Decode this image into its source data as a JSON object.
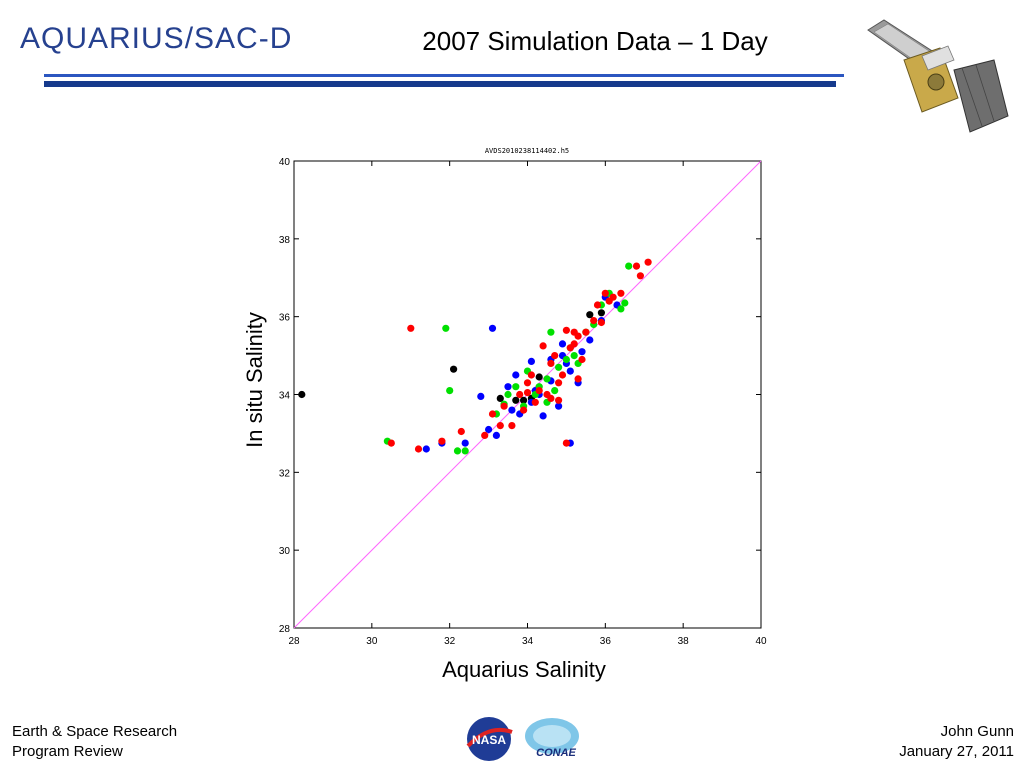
{
  "header": {
    "logo_text": "AQUARIUS/SAC-D",
    "title": "2007 Simulation Data – 1 Day"
  },
  "footer": {
    "left_line1": "Earth & Space Research",
    "left_line2": "Program Review",
    "right_line1": "John Gunn",
    "right_line2": "January 27, 2011"
  },
  "logos": {
    "nasa": "NASA",
    "conae": "CONAE"
  },
  "colors": {
    "rule_thin": "#2b56c0",
    "rule_thick": "#163a8c",
    "diagonal": "#ff66ff",
    "blue": "#0000ff",
    "green": "#00e000",
    "red": "#ff0000",
    "black": "#000000"
  },
  "chart_data": {
    "type": "scatter",
    "title": "AVDS2010238114402.h5",
    "xlabel": "Aquarius Salinity",
    "ylabel": "In situ Salinity",
    "xlim": [
      28,
      40
    ],
    "ylim": [
      28,
      40
    ],
    "xticks": [
      "28",
      "30",
      "32",
      "34",
      "36",
      "38",
      "40"
    ],
    "yticks": [
      "28",
      "30",
      "32",
      "34",
      "36",
      "38",
      "40"
    ],
    "reference_line": "y = x",
    "series": [
      {
        "color": "black",
        "points": [
          [
            28.2,
            34.0
          ],
          [
            32.1,
            34.65
          ],
          [
            33.3,
            33.9
          ],
          [
            33.9,
            33.85
          ],
          [
            34.3,
            34.45
          ],
          [
            35.6,
            36.05
          ],
          [
            35.9,
            36.1
          ],
          [
            34.1,
            33.9
          ],
          [
            33.7,
            33.85
          ]
        ]
      },
      {
        "color": "blue",
        "points": [
          [
            31.4,
            32.6
          ],
          [
            31.8,
            32.75
          ],
          [
            32.4,
            32.75
          ],
          [
            33.0,
            33.1
          ],
          [
            33.2,
            32.95
          ],
          [
            33.1,
            35.7
          ],
          [
            32.8,
            33.95
          ],
          [
            33.5,
            34.2
          ],
          [
            33.8,
            33.5
          ],
          [
            34.1,
            33.8
          ],
          [
            34.3,
            34.0
          ],
          [
            34.6,
            34.35
          ],
          [
            34.8,
            33.7
          ],
          [
            35.1,
            34.6
          ],
          [
            35.3,
            34.3
          ],
          [
            35.6,
            35.4
          ],
          [
            35.9,
            35.9
          ],
          [
            36.0,
            36.5
          ],
          [
            36.3,
            36.3
          ],
          [
            34.9,
            35.3
          ],
          [
            33.7,
            34.5
          ],
          [
            34.4,
            33.45
          ],
          [
            35.1,
            32.75
          ],
          [
            35.0,
            34.8
          ],
          [
            34.1,
            34.85
          ],
          [
            34.6,
            34.9
          ],
          [
            34.9,
            35.0
          ],
          [
            35.4,
            35.1
          ],
          [
            33.6,
            33.6
          ],
          [
            34.2,
            34.1
          ]
        ]
      },
      {
        "color": "green",
        "points": [
          [
            30.4,
            32.8
          ],
          [
            31.9,
            35.7
          ],
          [
            32.0,
            34.1
          ],
          [
            32.2,
            32.55
          ],
          [
            32.4,
            32.55
          ],
          [
            33.2,
            33.5
          ],
          [
            33.4,
            33.75
          ],
          [
            33.7,
            34.2
          ],
          [
            34.0,
            34.6
          ],
          [
            34.2,
            34.0
          ],
          [
            34.5,
            34.4
          ],
          [
            34.6,
            35.6
          ],
          [
            34.8,
            34.7
          ],
          [
            35.0,
            34.9
          ],
          [
            35.2,
            35.0
          ],
          [
            35.5,
            35.6
          ],
          [
            35.9,
            36.3
          ],
          [
            36.1,
            36.6
          ],
          [
            36.4,
            36.2
          ],
          [
            36.5,
            36.35
          ],
          [
            36.6,
            37.3
          ],
          [
            34.5,
            33.8
          ],
          [
            35.3,
            34.8
          ],
          [
            34.3,
            34.2
          ],
          [
            33.9,
            33.7
          ],
          [
            34.7,
            34.1
          ],
          [
            35.1,
            35.2
          ],
          [
            35.7,
            35.8
          ],
          [
            33.5,
            34.0
          ]
        ]
      },
      {
        "color": "red",
        "points": [
          [
            30.5,
            32.75
          ],
          [
            31.0,
            35.7
          ],
          [
            31.2,
            32.6
          ],
          [
            31.8,
            32.8
          ],
          [
            32.3,
            33.05
          ],
          [
            32.9,
            32.95
          ],
          [
            33.1,
            33.5
          ],
          [
            33.4,
            33.7
          ],
          [
            33.6,
            33.2
          ],
          [
            33.8,
            34.0
          ],
          [
            34.0,
            34.3
          ],
          [
            34.1,
            34.5
          ],
          [
            34.3,
            34.1
          ],
          [
            34.4,
            35.25
          ],
          [
            34.6,
            34.8
          ],
          [
            34.7,
            35.0
          ],
          [
            34.9,
            34.5
          ],
          [
            35.0,
            35.65
          ],
          [
            35.1,
            35.2
          ],
          [
            35.2,
            35.3
          ],
          [
            35.3,
            35.5
          ],
          [
            35.4,
            34.9
          ],
          [
            35.5,
            35.6
          ],
          [
            35.7,
            35.9
          ],
          [
            35.8,
            36.3
          ],
          [
            36.0,
            36.6
          ],
          [
            36.2,
            36.5
          ],
          [
            36.4,
            36.6
          ],
          [
            36.8,
            37.3
          ],
          [
            36.9,
            37.05
          ],
          [
            37.1,
            37.4
          ],
          [
            35.0,
            32.75
          ],
          [
            34.6,
            33.9
          ],
          [
            33.9,
            33.6
          ],
          [
            34.2,
            33.8
          ],
          [
            34.8,
            33.85
          ],
          [
            35.3,
            34.4
          ],
          [
            34.5,
            34.0
          ],
          [
            34.0,
            34.05
          ],
          [
            35.9,
            35.85
          ],
          [
            36.1,
            36.4
          ],
          [
            33.3,
            33.2
          ],
          [
            35.2,
            35.6
          ],
          [
            34.8,
            34.3
          ]
        ]
      }
    ]
  }
}
